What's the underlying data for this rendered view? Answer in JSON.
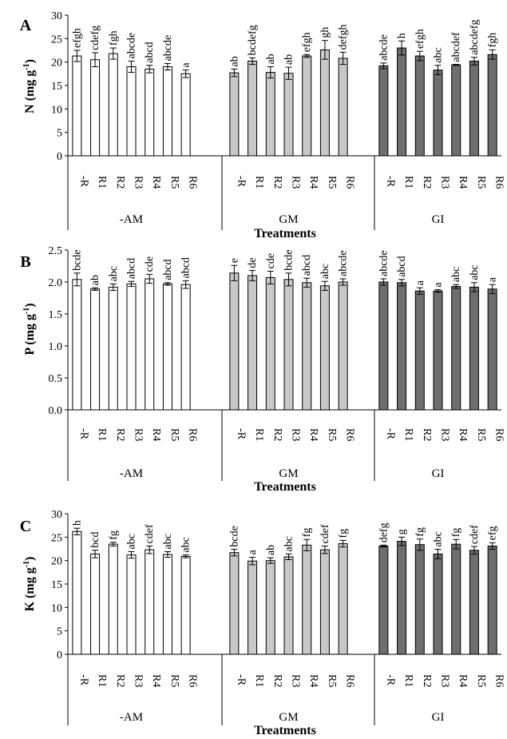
{
  "chart_data": [
    {
      "type": "bar",
      "panel_letter": "A",
      "ylabel": "N (mg g",
      "ylabel_sup": "-1",
      "ylabel_close": ")",
      "xlabel": "Treatments",
      "ylim": [
        0,
        30
      ],
      "yticks": [
        "0",
        "5",
        "10",
        "15",
        "20",
        "25",
        "30"
      ],
      "tick_values": [
        0,
        5,
        10,
        15,
        20,
        25,
        30
      ],
      "groups": [
        {
          "name": "-AM",
          "color": "#ffffff",
          "categories": [
            "-R",
            "R1",
            "R2",
            "R3",
            "R4",
            "R5",
            "R6"
          ],
          "values": [
            21.3,
            20.5,
            21.8,
            19.0,
            18.5,
            19.0,
            17.5
          ],
          "errors": [
            1.2,
            1.5,
            1.2,
            1.2,
            0.8,
            0.7,
            0.8
          ],
          "letters": [
            "efgh",
            "cdefg",
            "fgh",
            "abcde",
            "abcd",
            "abcde",
            "a"
          ]
        },
        {
          "name": "GM",
          "color": "#c8c8c8",
          "categories": [
            "-R",
            "R1",
            "R2",
            "R3",
            "R4",
            "R5",
            "R6"
          ],
          "values": [
            17.7,
            20.2,
            17.8,
            17.6,
            21.3,
            22.6,
            20.8
          ],
          "errors": [
            0.8,
            0.7,
            1.2,
            1.3,
            0.3,
            2.0,
            1.3
          ],
          "letters": [
            "ab",
            "bcdefg",
            "ab",
            "ab",
            "efgh",
            "gh",
            "defgh"
          ]
        },
        {
          "name": "GI",
          "color": "#6e6e6e",
          "categories": [
            "-R",
            "R1",
            "R2",
            "R3",
            "R4",
            "R5",
            "R6"
          ],
          "values": [
            19.2,
            23.0,
            21.3,
            18.3,
            19.4,
            20.2,
            21.6
          ],
          "errors": [
            0.6,
            1.5,
            1.0,
            1.0,
            0.1,
            0.8,
            1.0
          ],
          "letters": [
            "abcde",
            "h",
            "efgh",
            "abc",
            "abcdef",
            "abcdefg",
            "fgh"
          ]
        }
      ]
    },
    {
      "type": "bar",
      "panel_letter": "B",
      "ylabel": "P (mg g",
      "ylabel_sup": "-1",
      "ylabel_close": ")",
      "xlabel": "Treatments",
      "ylim": [
        0,
        2.5
      ],
      "yticks": [
        "0.0",
        "0.5",
        "1.0",
        "1.5",
        "2.0",
        "2.5"
      ],
      "tick_values": [
        0,
        0.5,
        1.0,
        1.5,
        2.0,
        2.5
      ],
      "groups": [
        {
          "name": "-AM",
          "color": "#ffffff",
          "categories": [
            "-R",
            "R1",
            "R2",
            "R3",
            "R4",
            "R5",
            "R6"
          ],
          "values": [
            2.04,
            1.89,
            1.92,
            1.97,
            2.05,
            1.97,
            1.96
          ],
          "errors": [
            0.1,
            0.02,
            0.05,
            0.04,
            0.07,
            0.02,
            0.06
          ],
          "letters": [
            "bcde",
            "ab",
            "abc",
            "abcd",
            "cde",
            "abcd",
            "abcd"
          ]
        },
        {
          "name": "GM",
          "color": "#c8c8c8",
          "categories": [
            "-R",
            "R1",
            "R2",
            "R3",
            "R4",
            "R5",
            "R6"
          ],
          "values": [
            2.14,
            2.1,
            2.07,
            2.04,
            1.99,
            1.94,
            2.0
          ],
          "errors": [
            0.12,
            0.08,
            0.1,
            0.1,
            0.07,
            0.07,
            0.05
          ],
          "letters": [
            "e",
            "de",
            "cde",
            "bcde",
            "abcd",
            "abc",
            "abcde"
          ]
        },
        {
          "name": "GI",
          "color": "#6e6e6e",
          "categories": [
            "-R",
            "R1",
            "R2",
            "R3",
            "R4",
            "R5",
            "R6"
          ],
          "values": [
            2.0,
            1.99,
            1.86,
            1.86,
            1.93,
            1.92,
            1.89
          ],
          "errors": [
            0.05,
            0.05,
            0.05,
            0.02,
            0.03,
            0.07,
            0.07
          ],
          "letters": [
            "abcde",
            "abcd",
            "a",
            "a",
            "abc",
            "abc",
            "a"
          ]
        }
      ]
    },
    {
      "type": "bar",
      "panel_letter": "C",
      "ylabel": "K (mg g",
      "ylabel_sup": "-1",
      "ylabel_close": ")",
      "xlabel": "Treatments",
      "ylim": [
        0,
        30
      ],
      "yticks": [
        "0",
        "5",
        "10",
        "15",
        "20",
        "25",
        "30"
      ],
      "tick_values": [
        0,
        5,
        10,
        15,
        20,
        25,
        30
      ],
      "groups": [
        {
          "name": "-AM",
          "color": "#ffffff",
          "categories": [
            "-R",
            "R1",
            "R2",
            "R3",
            "R4",
            "R5",
            "R6"
          ],
          "values": [
            26.2,
            21.4,
            23.5,
            21.2,
            22.3,
            21.3,
            20.9
          ],
          "errors": [
            0.7,
            0.8,
            0.4,
            0.7,
            0.8,
            0.6,
            0.3
          ],
          "letters": [
            "h",
            "bcd",
            "fg",
            "abc",
            "cdef",
            "abc",
            "abc"
          ]
        },
        {
          "name": "GM",
          "color": "#c8c8c8",
          "categories": [
            "-R",
            "R1",
            "R2",
            "R3",
            "R4",
            "R5",
            "R6"
          ],
          "values": [
            21.7,
            19.9,
            20.0,
            20.8,
            23.3,
            22.3,
            23.6
          ],
          "errors": [
            0.7,
            0.8,
            0.6,
            0.6,
            1.2,
            0.8,
            0.7
          ],
          "letters": [
            "bcde",
            "a",
            "ab",
            "abc",
            "fg",
            "cdef",
            "fg"
          ]
        },
        {
          "name": "GI",
          "color": "#6e6e6e",
          "categories": [
            "-R",
            "R1",
            "R2",
            "R3",
            "R4",
            "R5",
            "R6"
          ],
          "values": [
            23.1,
            24.1,
            23.4,
            21.4,
            23.5,
            22.2,
            23.1
          ],
          "errors": [
            0.2,
            0.9,
            1.2,
            1.0,
            1.0,
            0.8,
            0.7
          ],
          "letters": [
            "defg",
            "g",
            "fg",
            "abc",
            "fg",
            "cdef",
            "efg"
          ]
        }
      ]
    }
  ]
}
